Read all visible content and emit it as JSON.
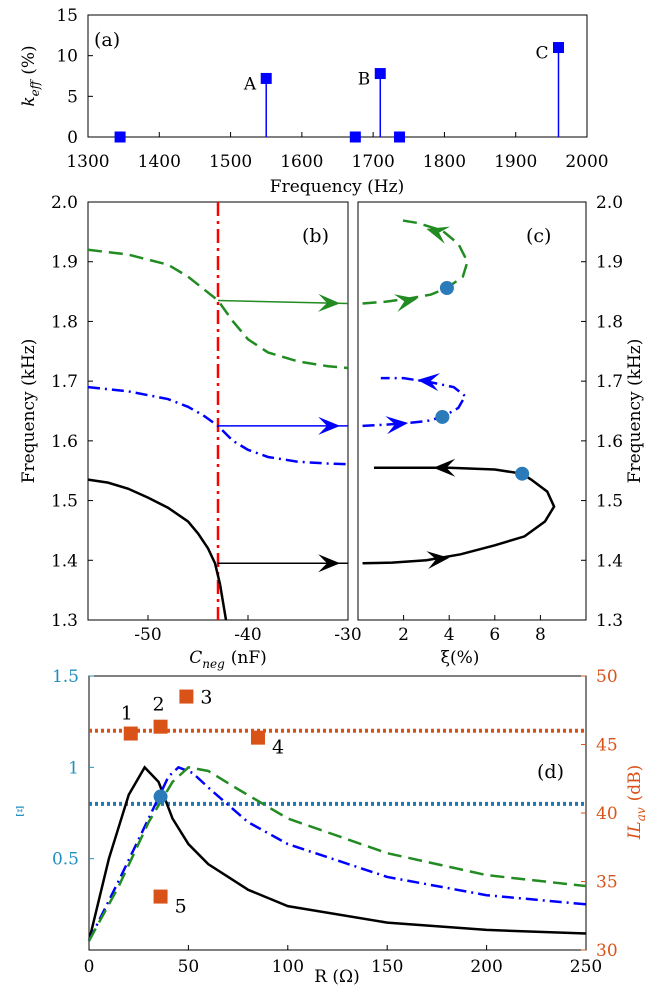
{
  "chart_data": [
    {
      "panel": "(a)",
      "type": "stem",
      "title": "",
      "xlabel": "Frequency (Hz)",
      "ylabel": "k_eff (%)",
      "ylabel_main": "k",
      "ylabel_sub": "eff",
      "ylabel_unit": "(%)",
      "xlim": [
        1300,
        2000
      ],
      "ylim": [
        0,
        15
      ],
      "xticks": [
        1300,
        1400,
        1500,
        1600,
        1700,
        1800,
        1900,
        2000
      ],
      "yticks": [
        0,
        5,
        10,
        15
      ],
      "grid": false,
      "color": "#0000ff",
      "points": [
        {
          "x": 1345,
          "y": 0,
          "label": ""
        },
        {
          "x": 1550,
          "y": 7.2,
          "label": "A"
        },
        {
          "x": 1675,
          "y": 0,
          "label": ""
        },
        {
          "x": 1710,
          "y": 7.8,
          "label": "B"
        },
        {
          "x": 1737,
          "y": 0,
          "label": ""
        },
        {
          "x": 1960,
          "y": 11,
          "label": "C"
        }
      ]
    },
    {
      "panel": "(b)",
      "type": "line",
      "xlabel": "C_neg (nF)",
      "xlabel_main": "C",
      "xlabel_sub": "neg",
      "xlabel_unit": "(nF)",
      "ylabel": "Frequency (kHz)",
      "xlim": [
        -56,
        -30
      ],
      "ylim": [
        1.3,
        2.0
      ],
      "xticks": [
        -50,
        -40,
        -30
      ],
      "yticks": [
        1.3,
        1.4,
        1.5,
        1.6,
        1.7,
        1.8,
        1.9,
        2.0
      ],
      "marker_line_x": -43,
      "marker_line_color": "#ff0000",
      "series": [
        {
          "style": "dash",
          "color": "#228b22",
          "points": [
            [
              -56,
              1.92
            ],
            [
              -52,
              1.912
            ],
            [
              -48,
              1.895
            ],
            [
              -46,
              1.875
            ],
            [
              -44.5,
              1.855
            ],
            [
              -43,
              1.835
            ],
            [
              -41.5,
              1.8
            ],
            [
              -40,
              1.77
            ],
            [
              -38,
              1.748
            ],
            [
              -35,
              1.733
            ],
            [
              -32,
              1.725
            ],
            [
              -30,
              1.722
            ]
          ]
        },
        {
          "style": "dashdot",
          "color": "#0000ff",
          "points": [
            [
              -56,
              1.69
            ],
            [
              -52,
              1.683
            ],
            [
              -48,
              1.67
            ],
            [
              -46,
              1.657
            ],
            [
              -44.5,
              1.643
            ],
            [
              -43,
              1.625
            ],
            [
              -41.5,
              1.6
            ],
            [
              -40,
              1.585
            ],
            [
              -38,
              1.573
            ],
            [
              -35,
              1.565
            ],
            [
              -32,
              1.562
            ],
            [
              -30,
              1.561
            ]
          ]
        },
        {
          "style": "solid",
          "color": "#000000",
          "points": [
            [
              -56,
              1.535
            ],
            [
              -54,
              1.53
            ],
            [
              -52,
              1.52
            ],
            [
              -50,
              1.505
            ],
            [
              -48,
              1.488
            ],
            [
              -46,
              1.465
            ],
            [
              -45,
              1.445
            ],
            [
              -44,
              1.42
            ],
            [
              -43.3,
              1.395
            ],
            [
              -42.8,
              1.36
            ],
            [
              -42.4,
              1.32
            ],
            [
              -42.2,
              1.3
            ]
          ]
        }
      ],
      "arrows": [
        {
          "color": "#228b22",
          "from": [
            -43,
            1.835
          ],
          "to": [
            -30,
            1.83
          ]
        },
        {
          "color": "#0000ff",
          "from": [
            -43,
            1.625
          ],
          "to": [
            -30,
            1.625
          ]
        },
        {
          "color": "#000000",
          "from": [
            -43,
            1.395
          ],
          "to": [
            -30,
            1.395
          ]
        }
      ]
    },
    {
      "panel": "(c)",
      "type": "line",
      "xlabel": "ξ(%)",
      "ylabel": "Frequency (kHz)",
      "xlim": [
        0,
        10
      ],
      "ylim": [
        1.3,
        2.0
      ],
      "xticks": [
        2,
        4,
        6,
        8
      ],
      "yticks": [
        1.3,
        1.4,
        1.5,
        1.6,
        1.7,
        1.8,
        1.9,
        2.0
      ],
      "series": [
        {
          "style": "dash",
          "color": "#228b22",
          "points": [
            [
              0.2,
              1.83
            ],
            [
              1.2,
              1.833
            ],
            [
              2.2,
              1.838
            ],
            [
              3.2,
              1.845
            ],
            [
              3.9,
              1.856
            ],
            [
              4.6,
              1.875
            ],
            [
              4.8,
              1.9
            ],
            [
              4.4,
              1.93
            ],
            [
              3.7,
              1.952
            ],
            [
              2.6,
              1.965
            ],
            [
              1.8,
              1.97
            ]
          ]
        },
        {
          "style": "dashdot",
          "color": "#0000ff",
          "points": [
            [
              0.2,
              1.625
            ],
            [
              1.2,
              1.627
            ],
            [
              2.2,
              1.63
            ],
            [
              3.0,
              1.633
            ],
            [
              3.7,
              1.64
            ],
            [
              4.4,
              1.655
            ],
            [
              4.7,
              1.675
            ],
            [
              4.2,
              1.69
            ],
            [
              3.2,
              1.698
            ],
            [
              2.0,
              1.705
            ],
            [
              1.0,
              1.705
            ]
          ]
        },
        {
          "style": "solid",
          "color": "#000000",
          "points": [
            [
              0.2,
              1.395
            ],
            [
              1.5,
              1.396
            ],
            [
              3.0,
              1.4
            ],
            [
              4.5,
              1.41
            ],
            [
              6.0,
              1.425
            ],
            [
              7.3,
              1.44
            ],
            [
              8.2,
              1.465
            ],
            [
              8.6,
              1.49
            ],
            [
              8.3,
              1.515
            ],
            [
              7.6,
              1.535
            ],
            [
              7.2,
              1.545
            ],
            [
              6.0,
              1.552
            ],
            [
              4.0,
              1.555
            ],
            [
              2.0,
              1.555
            ],
            [
              0.7,
              1.555
            ]
          ]
        }
      ],
      "arrowheads": [
        {
          "color": "#228b22",
          "at": [
            2.6,
            1.838
          ],
          "dir": [
            1,
            0.2
          ]
        },
        {
          "color": "#228b22",
          "at": [
            3.0,
            1.955
          ],
          "dir": [
            -1,
            0.3
          ]
        },
        {
          "color": "#0000ff",
          "at": [
            2.2,
            1.63
          ],
          "dir": [
            1,
            0.1
          ]
        },
        {
          "color": "#0000ff",
          "at": [
            2.6,
            1.702
          ],
          "dir": [
            -1,
            0.1
          ]
        },
        {
          "color": "#000000",
          "at": [
            4.0,
            1.404
          ],
          "dir": [
            1,
            0.1
          ]
        },
        {
          "color": "#000000",
          "at": [
            3.3,
            1.555
          ],
          "dir": [
            -1,
            0
          ]
        }
      ],
      "markers": [
        {
          "x": 3.9,
          "y": 1.856
        },
        {
          "x": 3.7,
          "y": 1.64
        },
        {
          "x": 7.2,
          "y": 1.545
        }
      ],
      "marker_color": "#2b7bba"
    },
    {
      "panel": "(d)",
      "type": "line",
      "xlabel": "R (Ω)",
      "ylabel_left": "Ξ",
      "ylabel_right": "IL_av (dB)",
      "ylabel_right_main": "IL",
      "ylabel_right_sub": "av",
      "ylabel_right_unit": "(dB)",
      "xlim": [
        0,
        250
      ],
      "ylim_left": [
        0,
        1.5
      ],
      "ylim_right": [
        30,
        50
      ],
      "xticks": [
        0,
        50,
        100,
        150,
        200,
        250
      ],
      "yticks_left": [
        0.5,
        1,
        1.5
      ],
      "yticks_right": [
        30,
        35,
        40,
        45,
        50
      ],
      "left_axis_color": "#1f8fbf",
      "right_axis_color": "#d95319",
      "hlines": [
        {
          "axis": "left",
          "y": 0.8,
          "color": "#1f78b4",
          "style": "dotted"
        },
        {
          "axis": "right",
          "y": 46,
          "color": "#d95319",
          "style": "dotted"
        }
      ],
      "series": [
        {
          "style": "solid",
          "color": "#000000",
          "points": [
            [
              0,
              0.05
            ],
            [
              10,
              0.5
            ],
            [
              20,
              0.85
            ],
            [
              28,
              1.0
            ],
            [
              35,
              0.92
            ],
            [
              42,
              0.72
            ],
            [
              50,
              0.58
            ],
            [
              60,
              0.47
            ],
            [
              80,
              0.33
            ],
            [
              100,
              0.24
            ],
            [
              150,
              0.15
            ],
            [
              200,
              0.11
            ],
            [
              250,
              0.09
            ]
          ]
        },
        {
          "style": "dashdot",
          "color": "#0000ff",
          "points": [
            [
              0,
              0.05
            ],
            [
              15,
              0.38
            ],
            [
              30,
              0.72
            ],
            [
              40,
              0.95
            ],
            [
              45,
              1.0
            ],
            [
              52,
              0.97
            ],
            [
              62,
              0.87
            ],
            [
              80,
              0.7
            ],
            [
              100,
              0.58
            ],
            [
              150,
              0.4
            ],
            [
              200,
              0.3
            ],
            [
              250,
              0.25
            ]
          ]
        },
        {
          "style": "dash",
          "color": "#228b22",
          "points": [
            [
              0,
              0.05
            ],
            [
              15,
              0.35
            ],
            [
              30,
              0.7
            ],
            [
              42,
              0.92
            ],
            [
              50,
              1.0
            ],
            [
              60,
              0.98
            ],
            [
              75,
              0.88
            ],
            [
              100,
              0.72
            ],
            [
              150,
              0.53
            ],
            [
              200,
              0.41
            ],
            [
              250,
              0.35
            ]
          ]
        }
      ],
      "circle_marker": {
        "x": 36,
        "y": 0.84,
        "color": "#2b7bba"
      },
      "squares": [
        {
          "label": "1",
          "x": 21,
          "y": 45.8
        },
        {
          "label": "2",
          "x": 36,
          "y": 46.3
        },
        {
          "label": "3",
          "x": 49,
          "y": 48.5
        },
        {
          "label": "4",
          "x": 85,
          "y": 45.5
        },
        {
          "label": "5",
          "x": 36,
          "y": 33.9
        }
      ],
      "square_color": "#d95319"
    }
  ]
}
